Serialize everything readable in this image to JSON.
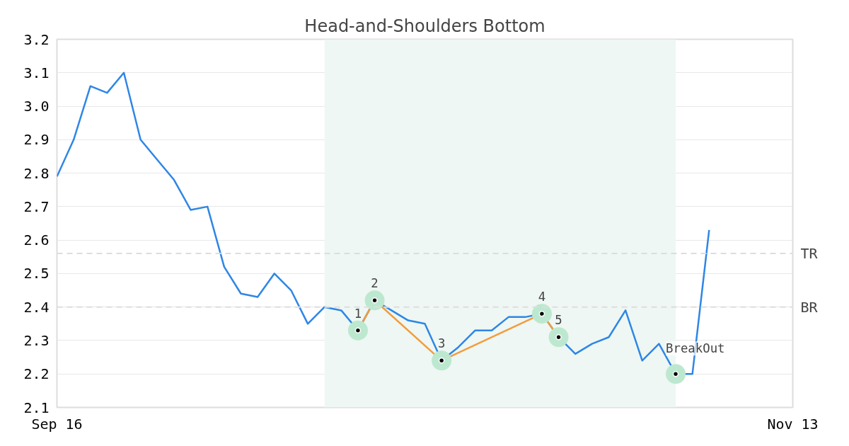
{
  "chart_data": {
    "type": "line",
    "title": "Head-and-Shoulders Bottom",
    "categories": [
      "Sep 16",
      null,
      null,
      null,
      null,
      null,
      null,
      null,
      null,
      null,
      null,
      null,
      null,
      null,
      null,
      null,
      null,
      null,
      null,
      null,
      null,
      null,
      null,
      null,
      null,
      null,
      null,
      null,
      null,
      null,
      null,
      null,
      null,
      null,
      null,
      null,
      null,
      null,
      null,
      null,
      null,
      null,
      null,
      null,
      "Nov 13"
    ],
    "series": [
      {
        "color": "#2e86e6",
        "values": [
          2.79,
          2.9,
          3.06,
          3.04,
          3.1,
          2.9,
          2.84,
          2.78,
          2.69,
          2.7,
          2.52,
          2.44,
          2.43,
          2.5,
          2.45,
          2.35,
          2.4,
          2.39,
          2.33,
          2.42,
          2.39,
          2.36,
          2.35,
          2.24,
          2.28,
          2.33,
          2.33,
          2.37,
          2.37,
          2.38,
          2.31,
          2.26,
          2.29,
          2.31,
          2.39,
          2.24,
          2.29,
          2.2,
          2.2,
          2.63,
          null,
          null,
          null,
          null,
          null
        ]
      },
      {
        "type": "line",
        "color": "#f39c3c",
        "marker": "circle",
        "values": [
          null,
          null,
          null,
          null,
          null,
          null,
          null,
          null,
          null,
          null,
          null,
          null,
          null,
          null,
          null,
          null,
          null,
          null,
          2.33,
          2.42,
          null,
          null,
          null,
          2.24,
          null,
          null,
          null,
          null,
          null,
          2.38,
          2.31,
          null,
          null,
          null,
          null,
          null,
          null,
          null,
          null,
          null,
          null,
          null,
          null,
          null,
          null
        ]
      },
      {
        "type": "scatter",
        "color": "#bde8d0",
        "marker": "circle",
        "values": [
          null,
          null,
          null,
          null,
          null,
          null,
          null,
          null,
          null,
          null,
          null,
          null,
          null,
          null,
          null,
          null,
          null,
          null,
          null,
          null,
          null,
          null,
          null,
          null,
          null,
          null,
          null,
          null,
          null,
          null,
          null,
          null,
          null,
          null,
          null,
          null,
          null,
          2.2,
          null,
          null,
          null,
          null,
          null,
          null,
          null
        ]
      }
    ],
    "annotations": [
      {
        "text": "1",
        "y": 2.33
      },
      {
        "text": "2",
        "y": 2.42
      },
      {
        "text": "3",
        "y": 2.24
      },
      {
        "text": "4",
        "y": 2.38
      },
      {
        "text": "5",
        "y": 2.31
      },
      {
        "text": "BreakOut",
        "y": 2.2
      }
    ],
    "ref_lines": [
      {
        "axis": "y",
        "value": 2.56,
        "label": "TR",
        "color": "#dddddd",
        "line_style": "dashed"
      },
      {
        "axis": "y",
        "value": 2.4,
        "label": "BR",
        "color": "#dddddd",
        "line_style": "dashed"
      }
    ],
    "ylim": [
      2.1,
      3.2
    ],
    "yticks": [
      2.1,
      2.2,
      2.3,
      2.4,
      2.5,
      2.6,
      2.7,
      2.8,
      2.9,
      {
        "value": 3.0,
        "label": "3.0"
      },
      3.1,
      3.2
    ],
    "grid": "y"
  }
}
